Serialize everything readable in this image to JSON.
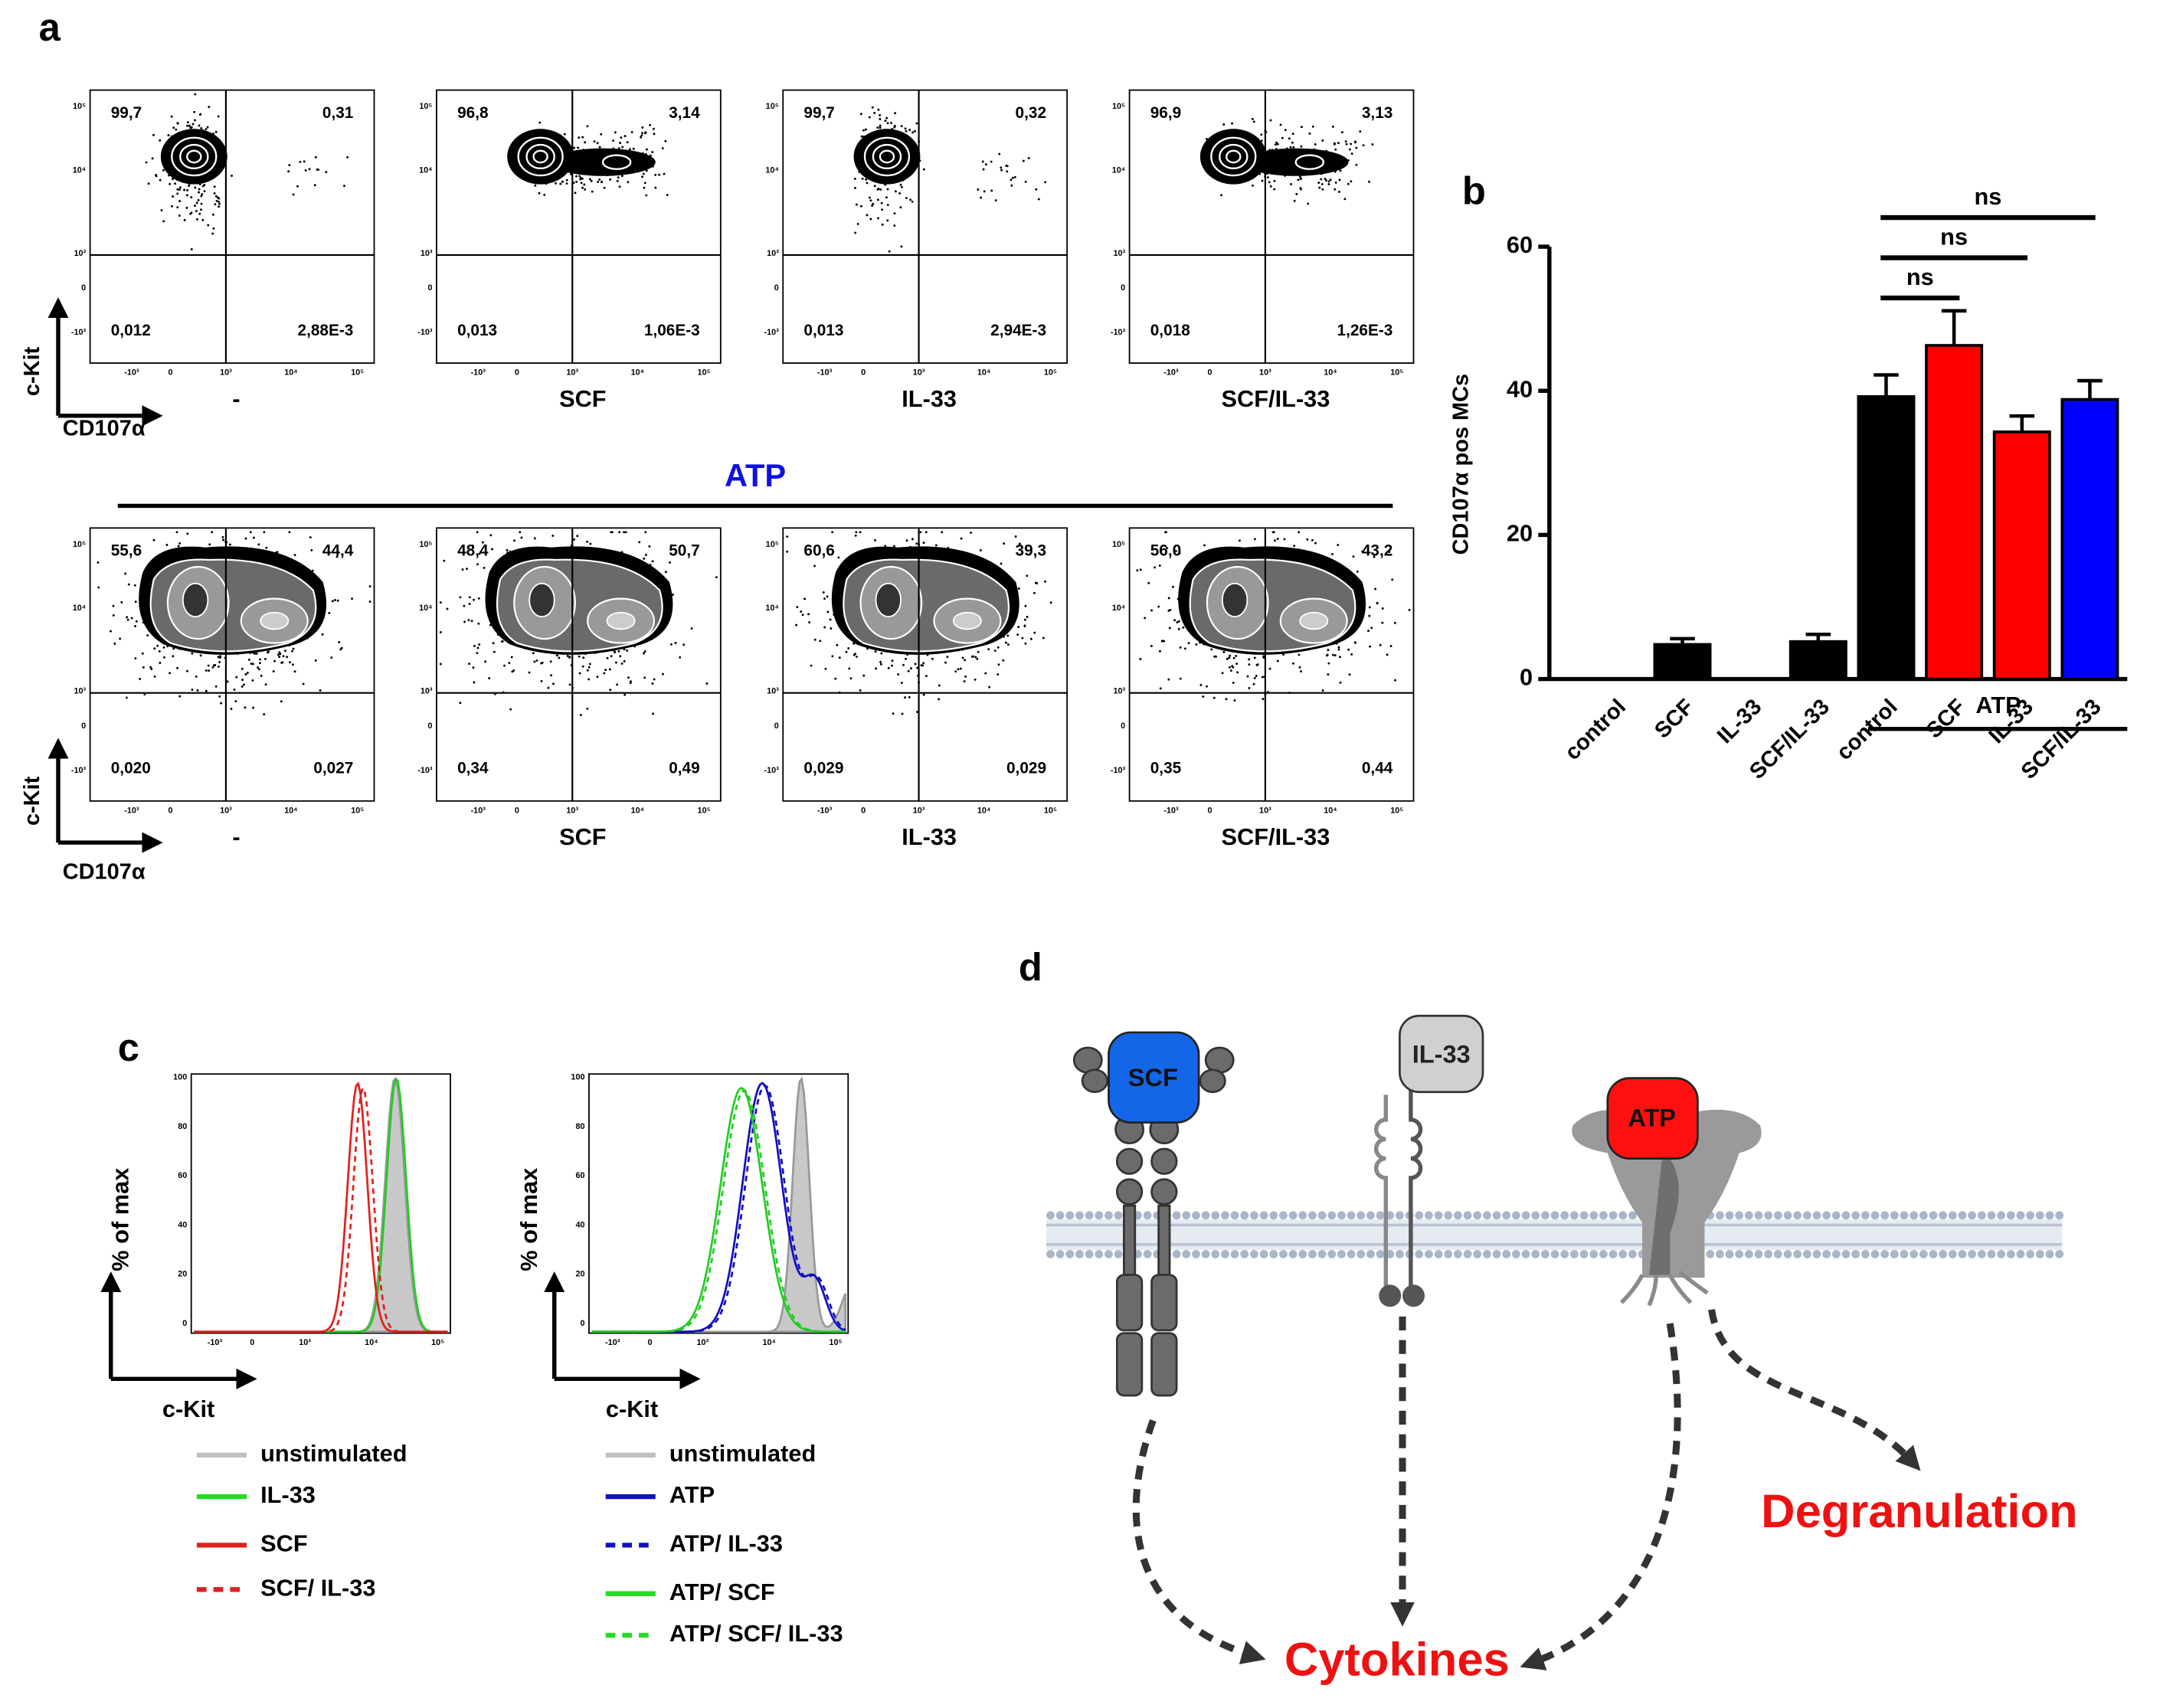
{
  "panel_a": {
    "letter": "a",
    "y_axis_label": "c-Kit",
    "x_axis_label": "CD107α",
    "atp_heading": "ATP",
    "plot_yticks": [
      "10⁵",
      "10⁴",
      "10³",
      "0",
      "-10³"
    ],
    "plot_xticks": [
      "-10³",
      "0",
      "10³",
      "10⁴",
      "10⁵"
    ],
    "top_row": [
      {
        "label": "-",
        "quadrants": [
          "99,7",
          "0,31",
          "0,012",
          "2,88E-3"
        ]
      },
      {
        "label": "SCF",
        "quadrants": [
          "96,8",
          "3,14",
          "0,013",
          "1,06E-3"
        ]
      },
      {
        "label": "IL-33",
        "quadrants": [
          "99,7",
          "0,32",
          "0,013",
          "2,94E-3"
        ]
      },
      {
        "label": "SCF/IL-33",
        "quadrants": [
          "96,9",
          "3,13",
          "0,018",
          "1,26E-3"
        ]
      }
    ],
    "bottom_row": [
      {
        "label": "-",
        "quadrants": [
          "55,6",
          "44,4",
          "0,020",
          "0,027"
        ]
      },
      {
        "label": "SCF",
        "quadrants": [
          "48,4",
          "50,7",
          "0,34",
          "0,49"
        ]
      },
      {
        "label": "IL-33",
        "quadrants": [
          "60,6",
          "39,3",
          "0,029",
          "0,029"
        ]
      },
      {
        "label": "SCF/IL-33",
        "quadrants": [
          "56,0",
          "43,2",
          "0,35",
          "0,44"
        ]
      }
    ]
  },
  "chart_data": {
    "type": "bar",
    "letter": "b",
    "y_axis_label": "CD107α pos MCs",
    "categories": [
      "control",
      "SCF",
      "IL-33",
      "SCF/IL-33",
      "control",
      "SCF",
      "IL-33",
      "SCF/IL-33"
    ],
    "values": [
      0,
      4.8,
      0,
      5.2,
      39.2,
      46.3,
      34.3,
      38.8
    ],
    "errors": [
      0,
      0.8,
      0,
      1,
      3,
      4.8,
      2.2,
      2.6
    ],
    "colors": [
      "#000000",
      "#000000",
      "#000000",
      "#000000",
      "#000000",
      "#ff0000",
      "#ff0000",
      "#0000ff"
    ],
    "ylim": [
      0,
      60
    ],
    "yticks": [
      0,
      20,
      40,
      60
    ],
    "group_label": "ATP",
    "annotations": [
      {
        "text": "ns",
        "from": 4,
        "to": 7
      },
      {
        "text": "ns",
        "from": 4,
        "to": 6
      },
      {
        "text": "ns",
        "from": 4,
        "to": 5
      }
    ]
  },
  "panel_c": {
    "letter": "c",
    "y_axis_label": "% of max",
    "x_axis_label": "c-Kit",
    "yticks": [
      "0",
      "20",
      "40",
      "60",
      "80",
      "100"
    ],
    "xticks": [
      "-10³",
      "0",
      "10³",
      "10⁴",
      "10⁵"
    ],
    "legend_left": [
      "unstimulated",
      "IL-33",
      "SCF",
      "SCF/ IL-33"
    ],
    "legend_right": [
      "unstimulated",
      "ATP",
      "ATP/ IL-33",
      "ATP/ SCF",
      "ATP/ SCF/ IL-33"
    ]
  },
  "panel_d": {
    "letter": "d",
    "receptors": [
      "SCF",
      "IL-33",
      "ATP"
    ],
    "outcomes": [
      "Cytokines",
      "Degranulation"
    ]
  }
}
